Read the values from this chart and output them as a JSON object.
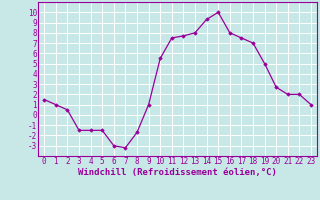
{
  "hours": [
    0,
    1,
    2,
    3,
    4,
    5,
    6,
    7,
    8,
    9,
    10,
    11,
    12,
    13,
    14,
    15,
    16,
    17,
    18,
    19,
    20,
    21,
    22,
    23
  ],
  "windchill": [
    1.5,
    1.0,
    0.5,
    -1.5,
    -1.5,
    -1.5,
    -3.0,
    -3.2,
    -1.7,
    1.0,
    5.5,
    7.5,
    7.7,
    8.0,
    9.3,
    10.0,
    8.0,
    7.5,
    7.0,
    5.0,
    2.7,
    2.0,
    2.0,
    1.0
  ],
  "line_color": "#990099",
  "marker": "D",
  "marker_size": 1.8,
  "line_width": 0.9,
  "bg_color": "#c8e8e8",
  "grid_color": "#ffffff",
  "xlabel": "Windchill (Refroidissement éolien,°C)",
  "xlabel_color": "#990099",
  "tick_color": "#990099",
  "spine_color": "#990099",
  "ylim": [
    -4,
    11
  ],
  "xlim": [
    -0.5,
    23.5
  ],
  "yticks": [
    -3,
    -2,
    -1,
    0,
    1,
    2,
    3,
    4,
    5,
    6,
    7,
    8,
    9,
    10
  ],
  "xticks": [
    0,
    1,
    2,
    3,
    4,
    5,
    6,
    7,
    8,
    9,
    10,
    11,
    12,
    13,
    14,
    15,
    16,
    17,
    18,
    19,
    20,
    21,
    22,
    23
  ],
  "tick_fontsize": 5.5,
  "xlabel_fontsize": 6.5
}
